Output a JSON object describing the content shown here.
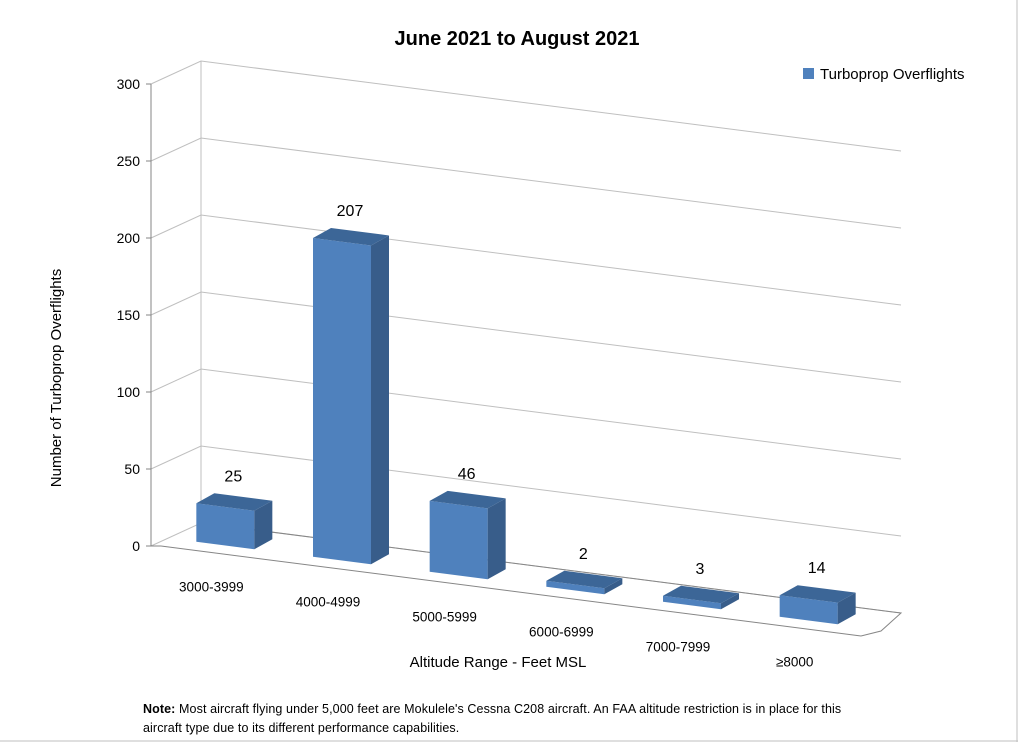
{
  "chart_data": {
    "type": "bar",
    "title": "June 2021 to August 2021",
    "xlabel": "Altitude Range - Feet MSL",
    "ylabel": "Number of Turboprop Overflights",
    "categories": [
      "3000-3999",
      "4000-4999",
      "5000-5999",
      "6000-6999",
      "7000-7999",
      "≥8000"
    ],
    "series": [
      {
        "name": "Turboprop Overflights",
        "values": [
          25,
          207,
          46,
          2,
          3,
          14
        ]
      }
    ],
    "ylim": [
      0,
      300
    ],
    "yticks": [
      "0",
      "50",
      "100",
      "150",
      "200",
      "250",
      "300"
    ],
    "data_labels": [
      "25",
      "207",
      "46",
      "2",
      "3",
      "14"
    ],
    "grid": true,
    "style": "3d-column",
    "legend_position": "top-right",
    "colors": {
      "bar_front": "#4F81BD",
      "bar_side": "#385D8A",
      "bar_top": "#3C6697"
    }
  },
  "note": {
    "label": "Note:",
    "text": " Most aircraft flying under 5,000 feet are Mokulele's Cessna C208 aircraft. An FAA altitude restriction is in place for this aircraft type due to its different performance capabilities."
  }
}
